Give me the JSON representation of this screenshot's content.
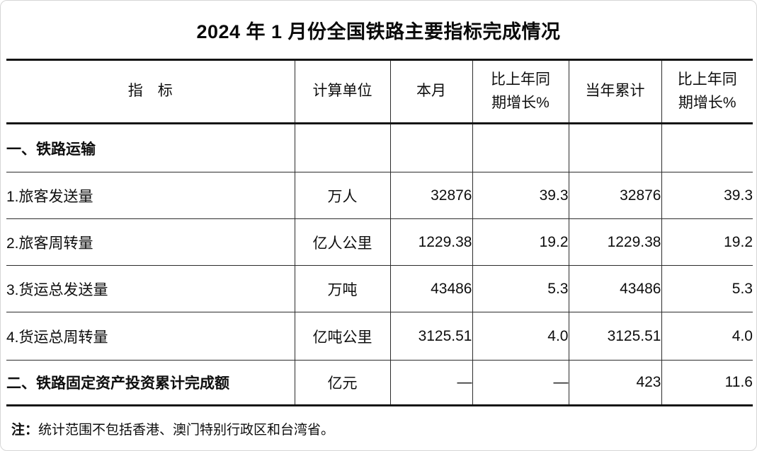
{
  "title": "2024 年 1 月份全国铁路主要指标完成情况",
  "table": {
    "headers": {
      "indicator": "指　标",
      "unit": "计算单位",
      "month": "本月",
      "month_growth": "比上年同\n期增长%",
      "cumulative": "当年累计",
      "cumulative_growth": "比上年同\n期增长%"
    },
    "rows": [
      {
        "label": "一、铁路运输",
        "unit": "",
        "month": "",
        "month_growth": "",
        "cumulative": "",
        "cumulative_growth": ""
      },
      {
        "label": "1.旅客发送量",
        "unit": "万人",
        "month": "32876",
        "month_growth": "39.3",
        "cumulative": "32876",
        "cumulative_growth": "39.3"
      },
      {
        "label": "2.旅客周转量",
        "unit": "亿人公里",
        "month": "1229.38",
        "month_growth": "19.2",
        "cumulative": "1229.38",
        "cumulative_growth": "19.2"
      },
      {
        "label": "3.货运总发送量",
        "unit": "万吨",
        "month": "43486",
        "month_growth": "5.3",
        "cumulative": "43486",
        "cumulative_growth": "5.3"
      },
      {
        "label": "4.货运总周转量",
        "unit": "亿吨公里",
        "month": "3125.51",
        "month_growth": "4.0",
        "cumulative": "3125.51",
        "cumulative_growth": "4.0"
      },
      {
        "label": "二、铁路固定资产投资累计完成额",
        "unit": "亿元",
        "month": "—",
        "month_growth": "—",
        "cumulative": "423",
        "cumulative_growth": "11.6"
      }
    ]
  },
  "note": {
    "prefix": "注：",
    "text": "统计范围不包括香港、澳门特别行政区和台湾省。"
  }
}
